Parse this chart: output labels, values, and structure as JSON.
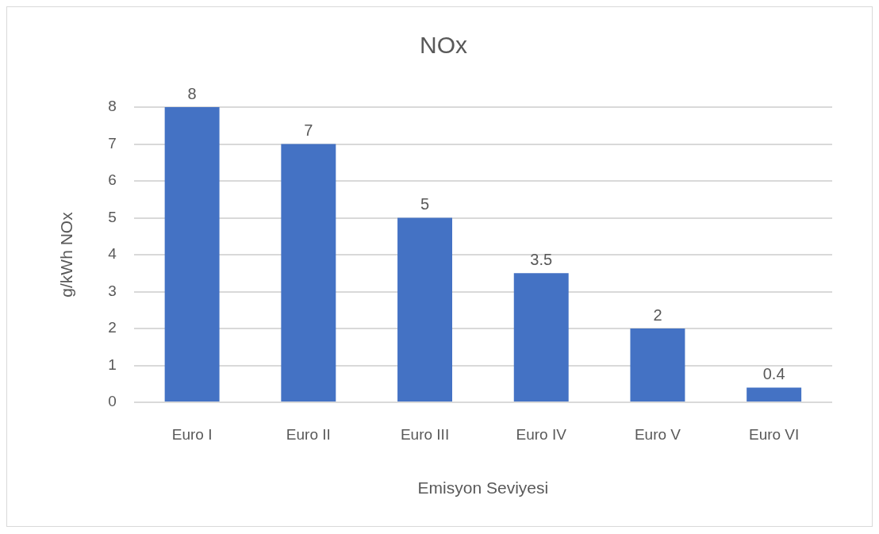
{
  "chart_data": {
    "type": "bar",
    "title": "NOx",
    "xlabel": "Emisyon Seviyesi",
    "ylabel": "g/kWh NOx",
    "categories": [
      "Euro I",
      "Euro II",
      "Euro III",
      "Euro IV",
      "Euro V",
      "Euro VI"
    ],
    "values": [
      8,
      7,
      5,
      3.5,
      2,
      0.4
    ],
    "color": "#4472c4",
    "ylim": [
      0,
      8
    ],
    "yticks": [
      0,
      1,
      2,
      3,
      4,
      5,
      6,
      7,
      8
    ],
    "grid": "y",
    "data_labels": true
  }
}
